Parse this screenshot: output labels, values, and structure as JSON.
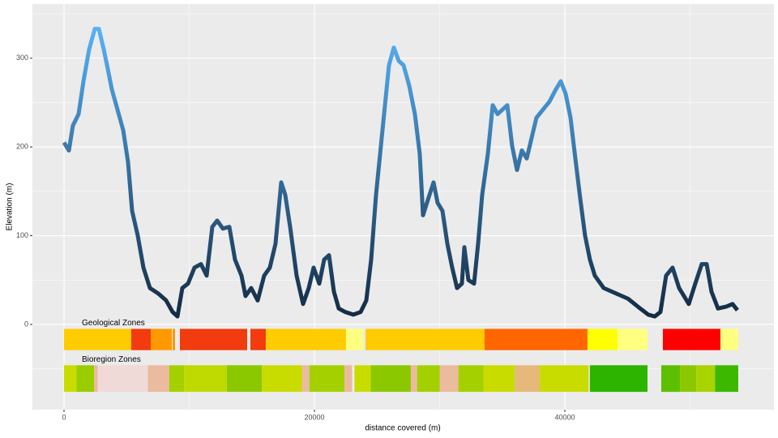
{
  "chart_data": {
    "type": "line",
    "x_label": "distance covered (m)",
    "y_label": "Elevation (m)",
    "xlim": [
      -2524,
      56700
    ],
    "ylim": [
      -96,
      361
    ],
    "xticks": [
      0,
      20000,
      40000
    ],
    "yticks": [
      0,
      100,
      200,
      300
    ],
    "grid": true,
    "color_low": "#132B43",
    "color_high": "#56B1F7",
    "x": [
      0,
      390,
      710,
      1165,
      1553,
      2006,
      2459,
      2783,
      3171,
      3495,
      3818,
      4271,
      4725,
      5113,
      5437,
      5890,
      6343,
      6860,
      7507,
      8155,
      8672,
      9061,
      9449,
      9902,
      10420,
      10938,
      11391,
      11844,
      12232,
      12685,
      13203,
      13656,
      14174,
      14497,
      14950,
      15468,
      15986,
      16439,
      16892,
      17345,
      17669,
      18058,
      18575,
      19093,
      19546,
      19934,
      20387,
      20776,
      21164,
      21553,
      21941,
      22459,
      23106,
      23689,
      24142,
      24531,
      24919,
      25435,
      25953,
      26341,
      26730,
      27118,
      27571,
      28024,
      28413,
      28672,
      29189,
      29513,
      29837,
      30225,
      30614,
      31002,
      31390,
      31779,
      31973,
      32296,
      32749,
      33073,
      33397,
      33850,
      34238,
      34627,
      35015,
      35403,
      35791,
      36180,
      36568,
      36956,
      37344,
      37733,
      38250,
      38768,
      39286,
      39674,
      40062,
      40451,
      40839,
      41227,
      41615,
      42004,
      42392,
      43104,
      44075,
      45045,
      46016,
      46664,
      47181,
      47634,
      48087,
      48605,
      49123,
      49900,
      50417,
      50935,
      51323,
      51711,
      52229,
      52876,
      53394,
      53782
    ],
    "values": [
      205,
      196,
      224,
      237,
      274,
      310,
      333,
      333,
      310,
      288,
      265,
      242,
      219,
      183,
      128,
      100,
      64,
      41,
      35,
      27,
      14,
      9,
      41,
      46,
      64,
      68,
      55,
      110,
      117,
      108,
      110,
      73,
      55,
      32,
      41,
      27,
      55,
      64,
      91,
      160,
      146,
      110,
      55,
      23,
      41,
      64,
      46,
      73,
      78,
      37,
      18,
      14,
      11,
      14,
      27,
      73,
      146,
      219,
      292,
      312,
      297,
      292,
      269,
      237,
      192,
      123,
      146,
      160,
      137,
      128,
      91,
      64,
      41,
      46,
      87,
      50,
      46,
      91,
      146,
      192,
      247,
      237,
      242,
      247,
      201,
      174,
      196,
      187,
      210,
      233,
      242,
      251,
      265,
      274,
      260,
      233,
      187,
      142,
      100,
      73,
      55,
      41,
      35,
      29,
      18,
      11,
      9,
      14,
      55,
      64,
      41,
      23,
      46,
      68,
      68,
      37,
      18,
      20,
      23,
      16
    ],
    "zones": [
      {
        "name": "Geological Zones",
        "ymin": -29,
        "ymax": -5,
        "segments": [
          {
            "xmin": 0,
            "xmax": 5372,
            "color": "#FFCC00"
          },
          {
            "xmin": 5372,
            "xmax": 6925,
            "color": "#F23B0E"
          },
          {
            "xmin": 6925,
            "xmax": 8608,
            "color": "#FF9900"
          },
          {
            "xmin": 8672,
            "xmax": 8866,
            "color": "#FF9900"
          },
          {
            "xmin": 9255,
            "xmax": 14626,
            "color": "#F23B0E"
          },
          {
            "xmin": 14885,
            "xmax": 16115,
            "color": "#F23B0E"
          },
          {
            "xmin": 16115,
            "xmax": 22523,
            "color": "#FFCC00"
          },
          {
            "xmin": 22523,
            "xmax": 23883,
            "color": "#FFFF80"
          },
          {
            "xmin": 24078,
            "xmax": 33591,
            "color": "#FFCC00"
          },
          {
            "xmin": 33591,
            "xmax": 41809,
            "color": "#FF6600"
          },
          {
            "xmin": 41809,
            "xmax": 44204,
            "color": "#FFFF00"
          },
          {
            "xmin": 44204,
            "xmax": 46599,
            "color": "#FFFF80"
          },
          {
            "xmin": 47829,
            "xmax": 52424,
            "color": "#FF0000"
          },
          {
            "xmin": 52424,
            "xmax": 53847,
            "color": "#FFFF80"
          }
        ]
      },
      {
        "name": "Bioregion Zones",
        "ymin": -76,
        "ymax": -46,
        "segments": [
          {
            "xmin": 0,
            "xmax": 1000,
            "color": "#C8DC00"
          },
          {
            "xmin": 1000,
            "xmax": 2400,
            "color": "#9ACD00"
          },
          {
            "xmin": 2400,
            "xmax": 2700,
            "color": "#EABB9E"
          },
          {
            "xmin": 2700,
            "xmax": 6700,
            "color": "#EFDAD8"
          },
          {
            "xmin": 6700,
            "xmax": 8400,
            "color": "#EABB9E"
          },
          {
            "xmin": 8400,
            "xmax": 9600,
            "color": "#A4D000"
          },
          {
            "xmin": 9600,
            "xmax": 13000,
            "color": "#BEDA00"
          },
          {
            "xmin": 13000,
            "xmax": 15800,
            "color": "#8CC800"
          },
          {
            "xmin": 15800,
            "xmax": 19000,
            "color": "#C8DC00"
          },
          {
            "xmin": 19000,
            "xmax": 19600,
            "color": "#EABB9E"
          },
          {
            "xmin": 19600,
            "xmax": 22400,
            "color": "#A4D000"
          },
          {
            "xmin": 22400,
            "xmax": 23000,
            "color": "#EABB9E"
          },
          {
            "xmin": 23200,
            "xmax": 24500,
            "color": "#C8DC00"
          },
          {
            "xmin": 24500,
            "xmax": 27700,
            "color": "#8CC800"
          },
          {
            "xmin": 27700,
            "xmax": 28200,
            "color": "#EABB9E"
          },
          {
            "xmin": 28200,
            "xmax": 30000,
            "color": "#A4D000"
          },
          {
            "xmin": 30000,
            "xmax": 31500,
            "color": "#EABB9E"
          },
          {
            "xmin": 31500,
            "xmax": 33500,
            "color": "#A4D000"
          },
          {
            "xmin": 33500,
            "xmax": 36000,
            "color": "#C8DC00"
          },
          {
            "xmin": 36000,
            "xmax": 38000,
            "color": "#E6B87A"
          },
          {
            "xmin": 38000,
            "xmax": 41900,
            "color": "#C8DC00"
          },
          {
            "xmin": 42000,
            "xmax": 46600,
            "color": "#2DB400"
          },
          {
            "xmin": 47700,
            "xmax": 49200,
            "color": "#5CBF00"
          },
          {
            "xmin": 49200,
            "xmax": 50500,
            "color": "#8CC800"
          },
          {
            "xmin": 50500,
            "xmax": 52000,
            "color": "#A8D400"
          },
          {
            "xmin": 52000,
            "xmax": 53850,
            "color": "#3DB800"
          }
        ]
      }
    ]
  }
}
